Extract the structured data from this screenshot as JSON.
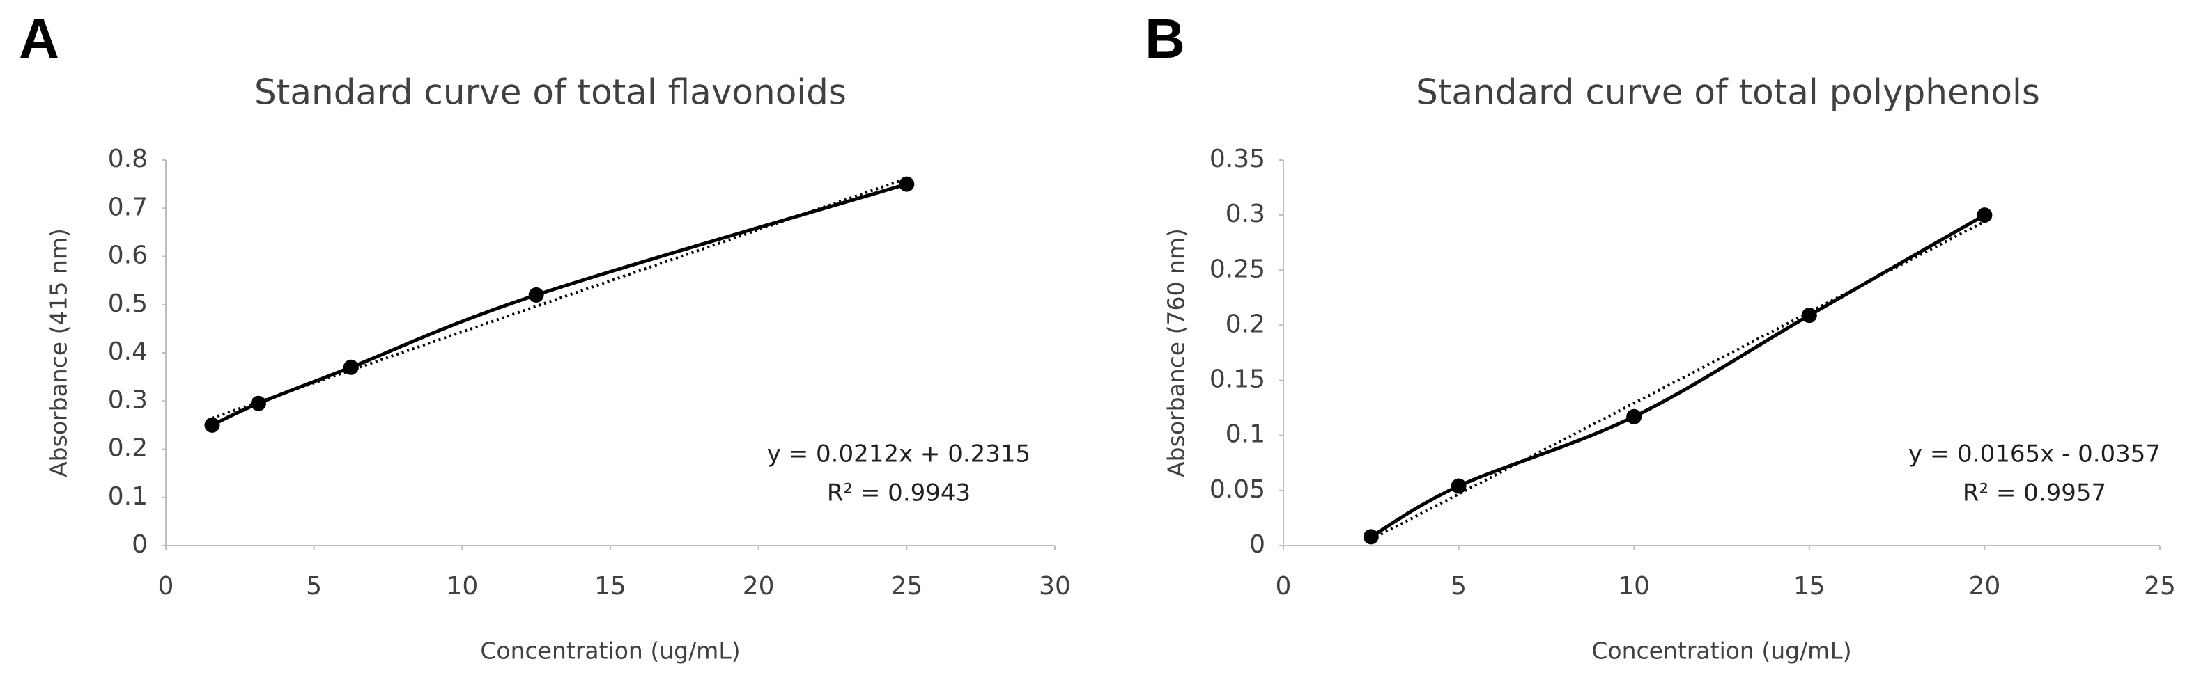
{
  "chart_data": [
    {
      "type": "scatter",
      "panel_label": "A",
      "title": "Standard curve of total flavonoids",
      "x_label": "Concentration (ug/mL)",
      "y_label": "Absorbance (415 nm)",
      "x": [
        1.5625,
        3.125,
        6.25,
        12.5,
        25
      ],
      "values": [
        0.25,
        0.295,
        0.37,
        0.52,
        0.75
      ],
      "color": "#000000",
      "smooth": true,
      "xlim": [
        0,
        30
      ],
      "xticks": [
        0,
        5,
        10,
        15,
        20,
        25,
        30
      ],
      "ylim": [
        0,
        0.8
      ],
      "yticks": [
        0,
        0.1,
        0.2,
        0.3,
        0.4,
        0.5,
        0.6,
        0.7,
        0.8
      ],
      "trendline": {
        "slope": 0.0212,
        "intercept": 0.2315,
        "label": "y = 0.0212x + 0.2315",
        "r2_label": "R² = 0.9943"
      }
    },
    {
      "type": "scatter",
      "panel_label": "B",
      "title": "Standard curve of total polyphenols",
      "x_label": "Concentration (ug/mL)",
      "y_label": "Absorbance (760 nm)",
      "x": [
        2.5,
        5,
        10,
        15,
        20
      ],
      "values": [
        0.008,
        0.054,
        0.117,
        0.209,
        0.3
      ],
      "color": "#000000",
      "smooth": true,
      "xlim": [
        0,
        25
      ],
      "xticks": [
        0,
        5,
        10,
        15,
        20,
        25
      ],
      "ylim": [
        0,
        0.35
      ],
      "yticks": [
        0,
        0.05,
        0.1,
        0.15,
        0.2,
        0.25,
        0.3,
        0.35
      ],
      "trendline": {
        "slope": 0.0165,
        "intercept": -0.0357,
        "label": "y = 0.0165x - 0.0357",
        "r2_label": "R² = 0.9957"
      }
    }
  ]
}
